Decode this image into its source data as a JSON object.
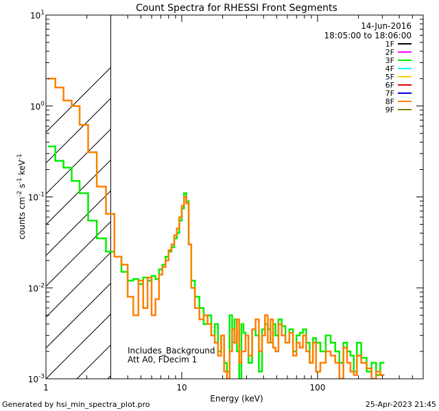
{
  "chart_data": {
    "type": "line",
    "title": "Count Spectra for RHESSI Front Segments",
    "xlabel": "Energy (keV)",
    "ylabel": "counts cm",
    "ylabel_sup1": "-2",
    "ylabel_mid": " s",
    "ylabel_sup2": "-1",
    "ylabel_end": " keV",
    "ylabel_sup3": "-1",
    "x_scale": "log",
    "y_scale": "log",
    "xlim": [
      1,
      600
    ],
    "ylim": [
      0.001,
      10
    ],
    "x_ticks": [
      {
        "value": 1,
        "label": "1"
      },
      {
        "value": 10,
        "label": "10"
      },
      {
        "value": 100,
        "label": "100"
      }
    ],
    "y_ticks": [
      {
        "value": 10,
        "base": "10",
        "exp": "1"
      },
      {
        "value": 1,
        "base": "10",
        "exp": "0"
      },
      {
        "value": 0.1,
        "base": "10",
        "exp": "-1"
      },
      {
        "value": 0.01,
        "base": "10",
        "exp": "-2"
      },
      {
        "value": 0.001,
        "base": "10",
        "exp": "-3"
      }
    ],
    "shaded_region_upper_keV": 3,
    "date": "14-Jun-2016",
    "time_range": "18:05:00 to 18:06:00",
    "legend_position": "top-right",
    "legend": [
      {
        "name": "1F",
        "color": "#000000"
      },
      {
        "name": "2F",
        "color": "#ff00ff"
      },
      {
        "name": "3F",
        "color": "#00ee00"
      },
      {
        "name": "4F",
        "color": "#00ffff"
      },
      {
        "name": "5F",
        "color": "#ffcc00"
      },
      {
        "name": "6F",
        "color": "#dd0000"
      },
      {
        "name": "7F",
        "color": "#0000dd"
      },
      {
        "name": "8F",
        "color": "#ff7f00"
      },
      {
        "name": "9F",
        "color": "#808000"
      }
    ],
    "annotations": [
      "Includes_Background",
      "Att A0, FDecim 1"
    ],
    "series": [
      {
        "name": "3F",
        "color": "#00ee00",
        "energy_keV": [
          1.1,
          1.25,
          1.45,
          1.65,
          1.9,
          2.2,
          2.55,
          3.0,
          3.4,
          3.8,
          4.2,
          4.6,
          5.0,
          5.4,
          5.8,
          6.2,
          6.6,
          7.0,
          7.4,
          7.8,
          8.2,
          8.6,
          9.0,
          9.4,
          9.8,
          10.2,
          10.6,
          11.0,
          11.5,
          12.0,
          13.0,
          14.0,
          15.0,
          16.0,
          17.0,
          18.0,
          19.0,
          20.0,
          21.0,
          22.0,
          23.0,
          24.0,
          25.0,
          26.0,
          27.0,
          28.0,
          29.0,
          30.0,
          32.0,
          34.0,
          36.0,
          38.0,
          40.0,
          42.0,
          44.0,
          46.0,
          48.0,
          50.0,
          53.0,
          56.0,
          60.0,
          64.0,
          68.0,
          72.0,
          76.0,
          80.0,
          85.0,
          90.0,
          95.0,
          100.0,
          110.0,
          120.0,
          130.0,
          140.0,
          150.0,
          160.0,
          170.0,
          180.0,
          190.0,
          200.0,
          220.0,
          240.0,
          260.0,
          280.0,
          300.0
        ],
        "counts": [
          0.36,
          0.25,
          0.21,
          0.15,
          0.11,
          0.055,
          0.035,
          0.025,
          0.022,
          0.015,
          0.012,
          0.0125,
          0.011,
          0.013,
          0.012,
          0.0135,
          0.0125,
          0.016,
          0.018,
          0.022,
          0.025,
          0.028,
          0.035,
          0.04,
          0.055,
          0.075,
          0.11,
          0.09,
          0.03,
          0.012,
          0.008,
          0.006,
          0.004,
          0.005,
          0.003,
          0.004,
          0.002,
          0.003,
          0.0015,
          0.0012,
          0.005,
          0.0025,
          0.0045,
          0.002,
          0.001,
          0.004,
          0.0032,
          0.003,
          0.0015,
          0.0035,
          0.003,
          0.0012,
          0.0035,
          0.004,
          0.0035,
          0.0025,
          0.004,
          0.003,
          0.0045,
          0.0038,
          0.0025,
          0.0035,
          0.002,
          0.003,
          0.0032,
          0.0035,
          0.0025,
          0.0015,
          0.0028,
          0.0025,
          0.002,
          0.003,
          0.0025,
          0.002,
          0.0015,
          0.0025,
          0.002,
          0.0018,
          0.0012,
          0.0025,
          0.0017,
          0.0012,
          0.0015,
          0.0011,
          0.0015
        ]
      },
      {
        "name": "8F",
        "color": "#ff7f00",
        "energy_keV": [
          1.1,
          1.25,
          1.45,
          1.65,
          1.9,
          2.2,
          2.55,
          3.0,
          3.4,
          3.8,
          4.2,
          4.6,
          5.0,
          5.4,
          5.8,
          6.2,
          6.6,
          7.0,
          7.4,
          7.8,
          8.2,
          8.6,
          9.0,
          9.4,
          9.8,
          10.2,
          10.6,
          11.0,
          11.5,
          12.0,
          13.0,
          14.0,
          15.0,
          16.0,
          17.0,
          18.0,
          19.0,
          20.0,
          21.0,
          22.0,
          23.0,
          24.0,
          25.0,
          26.0,
          27.0,
          28.0,
          29.0,
          30.0,
          32.0,
          34.0,
          36.0,
          38.0,
          40.0,
          42.0,
          44.0,
          46.0,
          48.0,
          50.0,
          53.0,
          56.0,
          60.0,
          64.0,
          68.0,
          72.0,
          76.0,
          80.0,
          85.0,
          90.0,
          95.0,
          100.0,
          110.0,
          120.0,
          130.0,
          140.0,
          150.0,
          160.0,
          170.0,
          180.0,
          190.0,
          200.0,
          220.0,
          240.0,
          260.0,
          280.0,
          300.0
        ],
        "counts": [
          2.0,
          1.6,
          1.15,
          1.0,
          0.62,
          0.31,
          0.13,
          0.065,
          0.022,
          0.018,
          0.008,
          0.005,
          0.012,
          0.006,
          0.013,
          0.005,
          0.0075,
          0.014,
          0.017,
          0.02,
          0.026,
          0.03,
          0.038,
          0.045,
          0.06,
          0.08,
          0.1,
          0.085,
          0.03,
          0.01,
          0.006,
          0.0045,
          0.005,
          0.004,
          0.003,
          0.0025,
          0.0018,
          0.003,
          0.0012,
          0.001,
          0.002,
          0.0035,
          0.0025,
          0.0045,
          0.0015,
          0.002,
          0.002,
          0.003,
          0.0018,
          0.0035,
          0.0045,
          0.002,
          0.003,
          0.005,
          0.0025,
          0.0045,
          0.0022,
          0.002,
          0.004,
          0.003,
          0.0025,
          0.0032,
          0.0018,
          0.0025,
          0.0022,
          0.003,
          0.002,
          0.0015,
          0.0025,
          0.0012,
          0.0015,
          0.002,
          0.0018,
          0.0015,
          0.001,
          0.0022,
          0.0015,
          0.0012,
          0.0011,
          0.0018,
          0.0015,
          0.0013,
          0.001,
          0.0012,
          0.0011
        ]
      }
    ]
  },
  "footer": {
    "generated_by": "Generated by hsi_min_spectra_plot.pro",
    "timestamp": "25-Apr-2023 21:45"
  }
}
